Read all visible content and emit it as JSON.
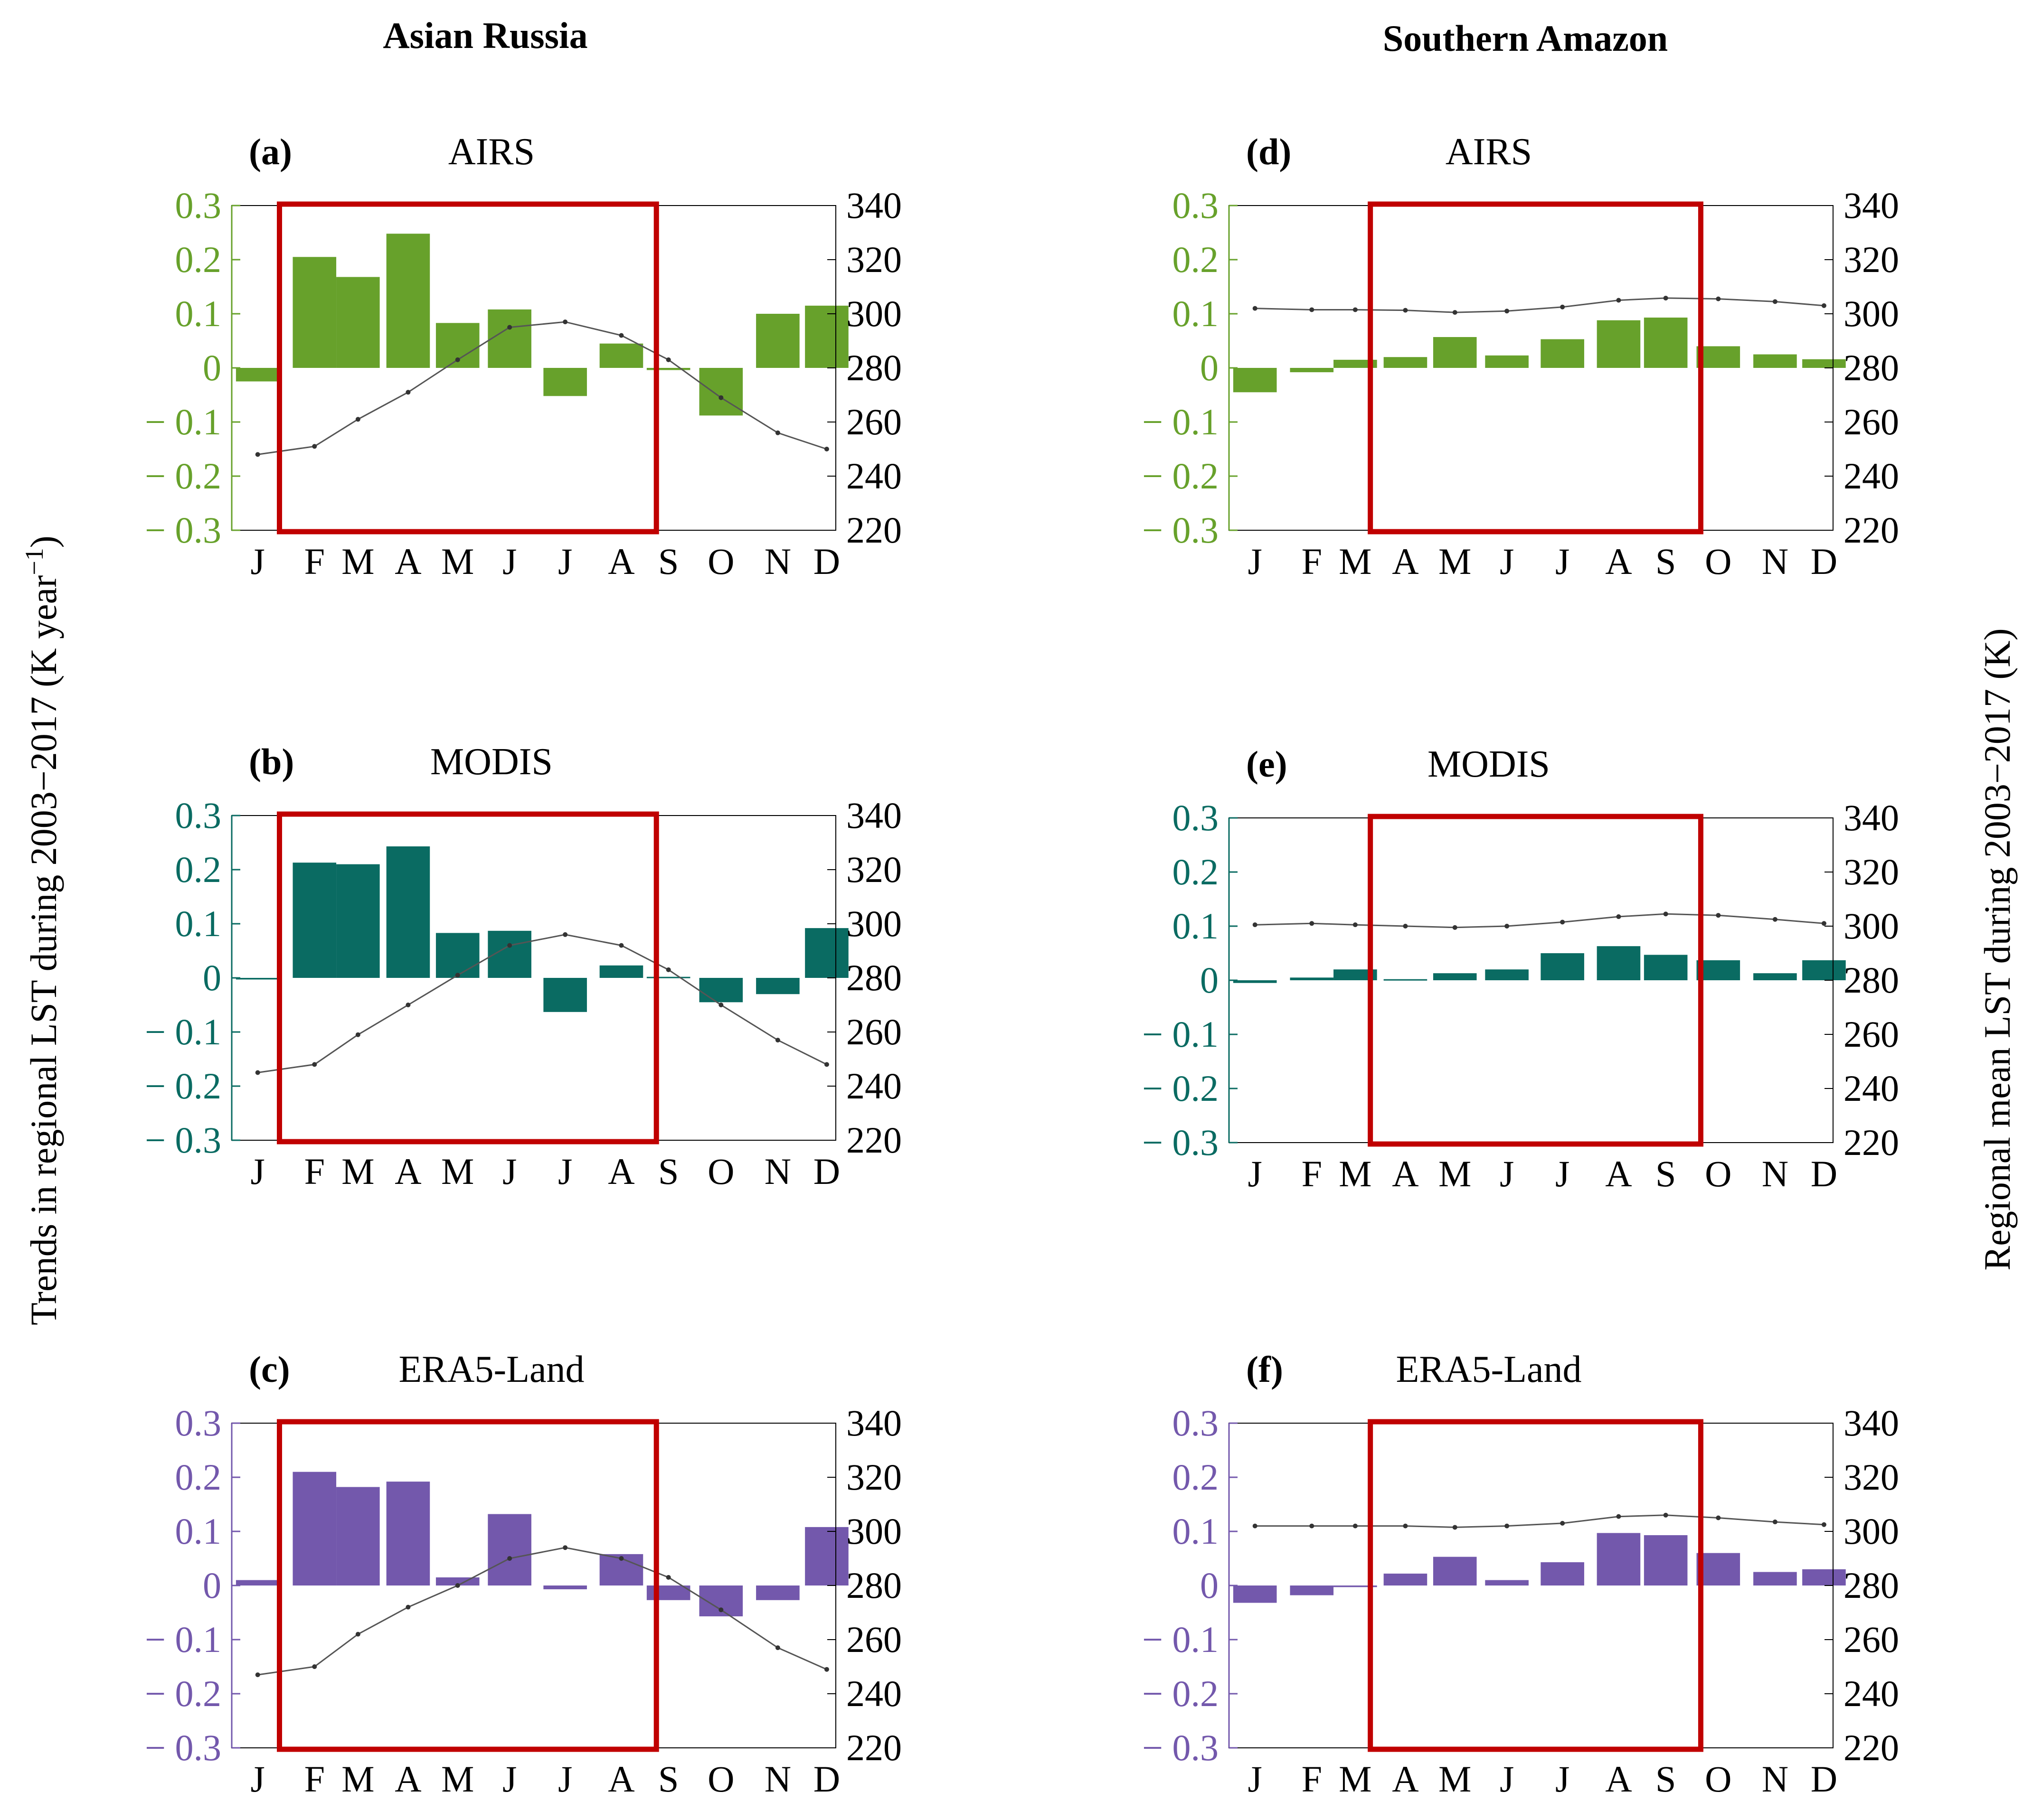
{
  "figure": {
    "column_titles": [
      "Asian Russia",
      "Southern Amazon"
    ],
    "left_axis_label": "Trends in regional LST during 2003−2017 (K year",
    "left_axis_sup": "−1",
    "left_axis_suffix": ")",
    "right_axis_label": "Regional mean LST during 2003−2017 (K)"
  },
  "colors": {
    "AIRS": "#67a12b",
    "MODIS": "#0a6b62",
    "ERA5-Land": "#7358ac",
    "highlight": "#c00000",
    "line": "#555555"
  },
  "chart_data": [
    {
      "type": "bar",
      "panel": "(a)",
      "title": "AIRS",
      "region": "Asian Russia",
      "categories": [
        "J",
        "F",
        "M",
        "A",
        "M",
        "J",
        "J",
        "A",
        "S",
        "O",
        "N",
        "D"
      ],
      "values": [
        -0.025,
        0.205,
        0.168,
        0.248,
        0.083,
        0.108,
        -0.052,
        0.045,
        -0.004,
        -0.088,
        0.1,
        0.115
      ],
      "ylim": [
        -0.3,
        0.3
      ],
      "yticks": [
        "0.3",
        "0.2",
        "0.1",
        "0",
        "− 0.1",
        "− 0.2",
        "− 0.3"
      ],
      "secondary_series": {
        "name": "Regional mean LST (K)",
        "type": "line",
        "values": [
          248,
          251,
          261,
          271,
          283,
          295,
          297,
          292,
          283,
          269,
          256,
          250
        ],
        "ylim": [
          220,
          340
        ],
        "yticks": [
          "340",
          "320",
          "300",
          "280",
          "260",
          "240",
          "220"
        ]
      },
      "highlight": {
        "from": "F",
        "to": "A"
      }
    },
    {
      "type": "bar",
      "panel": "(b)",
      "title": "MODIS",
      "region": "Asian Russia",
      "categories": [
        "J",
        "F",
        "M",
        "A",
        "M",
        "J",
        "J",
        "A",
        "S",
        "O",
        "N",
        "D"
      ],
      "values": [
        -0.003,
        0.213,
        0.21,
        0.243,
        0.083,
        0.087,
        -0.063,
        0.023,
        0.002,
        -0.045,
        -0.03,
        0.092
      ],
      "ylim": [
        -0.3,
        0.3
      ],
      "yticks": [
        "0.3",
        "0.2",
        "0.1",
        "0",
        "− 0.1",
        "− 0.2",
        "− 0.3"
      ],
      "secondary_series": {
        "name": "Regional mean LST (K)",
        "type": "line",
        "values": [
          245,
          248,
          259,
          270,
          281,
          292,
          296,
          292,
          283,
          270,
          257,
          248
        ],
        "ylim": [
          220,
          340
        ],
        "yticks": [
          "340",
          "320",
          "300",
          "280",
          "260",
          "240",
          "220"
        ]
      },
      "highlight": {
        "from": "F",
        "to": "A"
      }
    },
    {
      "type": "bar",
      "panel": "(c)",
      "title": "ERA5-Land",
      "region": "Asian Russia",
      "categories": [
        "J",
        "F",
        "M",
        "A",
        "M",
        "J",
        "J",
        "A",
        "S",
        "O",
        "N",
        "D"
      ],
      "values": [
        0.01,
        0.21,
        0.182,
        0.192,
        0.015,
        0.132,
        -0.007,
        0.058,
        -0.027,
        -0.057,
        -0.027,
        0.108
      ],
      "ylim": [
        -0.3,
        0.3
      ],
      "yticks": [
        "0.3",
        "0.2",
        "0.1",
        "0",
        "− 0.1",
        "− 0.2",
        "− 0.3"
      ],
      "secondary_series": {
        "name": "Regional mean LST (K)",
        "type": "line",
        "values": [
          247,
          250,
          262,
          272,
          280,
          290,
          294,
          290,
          283,
          271,
          257,
          249
        ],
        "ylim": [
          220,
          340
        ],
        "yticks": [
          "340",
          "320",
          "300",
          "280",
          "260",
          "240",
          "220"
        ]
      },
      "highlight": {
        "from": "F",
        "to": "A"
      }
    },
    {
      "type": "bar",
      "panel": "(d)",
      "title": "AIRS",
      "region": "Southern Amazon",
      "categories": [
        "J",
        "F",
        "M",
        "A",
        "M",
        "J",
        "J",
        "A",
        "S",
        "O",
        "N",
        "D"
      ],
      "values": [
        -0.045,
        -0.008,
        0.015,
        0.02,
        0.057,
        0.023,
        0.053,
        0.088,
        0.093,
        0.04,
        0.025,
        0.016
      ],
      "ylim": [
        -0.3,
        0.3
      ],
      "yticks": [
        "0.3",
        "0.2",
        "0.1",
        "0",
        "− 0.1",
        "− 0.2",
        "− 0.3"
      ],
      "secondary_series": {
        "name": "Regional mean LST (K)",
        "type": "line",
        "values": [
          302,
          301.5,
          301.5,
          301.3,
          300.5,
          301,
          302.5,
          305,
          305.8,
          305.5,
          304.5,
          303
        ],
        "ylim": [
          220,
          340
        ],
        "yticks": [
          "340",
          "320",
          "300",
          "280",
          "260",
          "240",
          "220"
        ]
      },
      "highlight": {
        "from": "A",
        "to": "S"
      }
    },
    {
      "type": "bar",
      "panel": "(e)",
      "title": "MODIS",
      "region": "Southern Amazon",
      "categories": [
        "J",
        "F",
        "M",
        "A",
        "M",
        "J",
        "J",
        "A",
        "S",
        "O",
        "N",
        "D"
      ],
      "values": [
        -0.005,
        0.005,
        0.02,
        0.002,
        0.013,
        0.02,
        0.05,
        0.063,
        0.047,
        0.037,
        0.013,
        0.037
      ],
      "ylim": [
        -0.3,
        0.3
      ],
      "yticks": [
        "0.3",
        "0.2",
        "0.1",
        "0",
        "− 0.1",
        "− 0.2",
        "− 0.3"
      ],
      "secondary_series": {
        "name": "Regional mean LST (K)",
        "type": "line",
        "values": [
          300.5,
          301,
          300.5,
          300,
          299.5,
          300,
          301.5,
          303.5,
          304.5,
          304,
          302.5,
          301
        ],
        "ylim": [
          220,
          340
        ],
        "yticks": [
          "340",
          "320",
          "300",
          "280",
          "260",
          "240",
          "220"
        ]
      },
      "highlight": {
        "from": "A",
        "to": "S"
      }
    },
    {
      "type": "bar",
      "panel": "(f)",
      "title": "ERA5-Land",
      "region": "Southern Amazon",
      "categories": [
        "J",
        "F",
        "M",
        "A",
        "M",
        "J",
        "J",
        "A",
        "S",
        "O",
        "N",
        "D"
      ],
      "values": [
        -0.032,
        -0.018,
        -0.003,
        0.022,
        0.053,
        0.01,
        0.043,
        0.097,
        0.093,
        0.06,
        0.025,
        0.03
      ],
      "ylim": [
        -0.3,
        0.3
      ],
      "yticks": [
        "0.3",
        "0.2",
        "0.1",
        "0",
        "− 0.1",
        "− 0.2",
        "− 0.3"
      ],
      "secondary_series": {
        "name": "Regional mean LST (K)",
        "type": "line",
        "values": [
          302,
          302,
          302,
          302,
          301.5,
          302,
          303,
          305.5,
          306,
          305,
          303.5,
          302.5
        ],
        "ylim": [
          220,
          340
        ],
        "yticks": [
          "340",
          "320",
          "300",
          "280",
          "260",
          "240",
          "220"
        ]
      },
      "highlight": {
        "from": "A",
        "to": "S"
      }
    }
  ]
}
